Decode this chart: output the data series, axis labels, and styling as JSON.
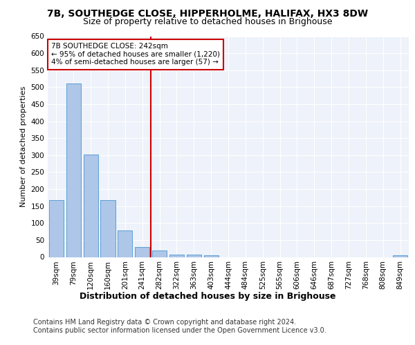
{
  "title1": "7B, SOUTHEDGE CLOSE, HIPPERHOLME, HALIFAX, HX3 8DW",
  "title2": "Size of property relative to detached houses in Brighouse",
  "xlabel": "Distribution of detached houses by size in Brighouse",
  "ylabel": "Number of detached properties",
  "categories": [
    "39sqm",
    "79sqm",
    "120sqm",
    "160sqm",
    "201sqm",
    "241sqm",
    "282sqm",
    "322sqm",
    "363sqm",
    "403sqm",
    "444sqm",
    "484sqm",
    "525sqm",
    "565sqm",
    "606sqm",
    "646sqm",
    "687sqm",
    "727sqm",
    "768sqm",
    "808sqm",
    "849sqm"
  ],
  "values": [
    168,
    510,
    302,
    168,
    78,
    30,
    20,
    8,
    8,
    5,
    0,
    0,
    0,
    0,
    0,
    0,
    0,
    0,
    0,
    0,
    5
  ],
  "bar_color": "#aec6e8",
  "bar_edge_color": "#5a9fd4",
  "highlight_index": 5,
  "highlight_color": "#cc0000",
  "ylim": [
    0,
    650
  ],
  "yticks": [
    0,
    50,
    100,
    150,
    200,
    250,
    300,
    350,
    400,
    450,
    500,
    550,
    600,
    650
  ],
  "annotation_text": "7B SOUTHEDGE CLOSE: 242sqm\n← 95% of detached houses are smaller (1,220)\n4% of semi-detached houses are larger (57) →",
  "annotation_box_color": "#ffffff",
  "annotation_box_edge": "#cc0000",
  "footer1": "Contains HM Land Registry data © Crown copyright and database right 2024.",
  "footer2": "Contains public sector information licensed under the Open Government Licence v3.0.",
  "background_color": "#eef2fa",
  "title1_fontsize": 10,
  "title2_fontsize": 9,
  "xlabel_fontsize": 9,
  "ylabel_fontsize": 8,
  "tick_fontsize": 7.5,
  "annotation_fontsize": 7.5,
  "footer_fontsize": 7
}
